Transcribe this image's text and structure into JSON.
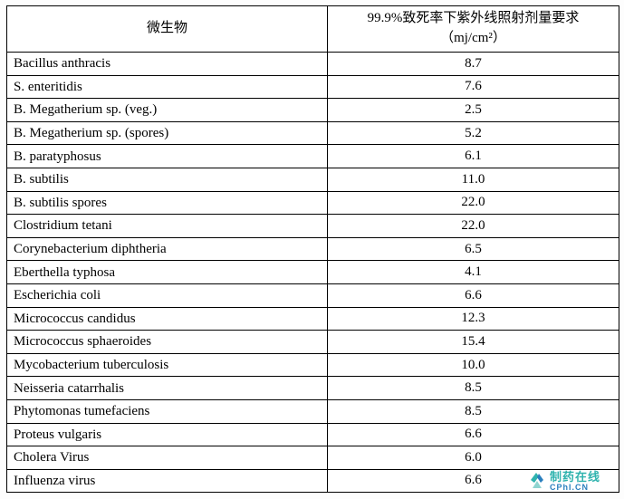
{
  "table": {
    "col1_header": "微生物",
    "col2_header_line1": "99.9%致死率下紫外线照射剂量要求",
    "col2_header_line2": "（mj/cm²）",
    "rows": [
      {
        "name": "Bacillus anthracis",
        "value": "8.7"
      },
      {
        "name": "S. enteritidis",
        "value": "7.6"
      },
      {
        "name": "B. Megatherium sp. (veg.)",
        "value": "2.5"
      },
      {
        "name": "B. Megatherium sp. (spores)",
        "value": "5.2"
      },
      {
        "name": "B. paratyphosus",
        "value": "6.1"
      },
      {
        "name": "B. subtilis",
        "value": "11.0"
      },
      {
        "name": "B. subtilis spores",
        "value": "22.0"
      },
      {
        "name": "Clostridium tetani",
        "value": "22.0"
      },
      {
        "name": "Corynebacterium diphtheria",
        "value": "6.5"
      },
      {
        "name": "Eberthella typhosa",
        "value": "4.1"
      },
      {
        "name": "Escherichia coli",
        "value": "6.6"
      },
      {
        "name": "Micrococcus candidus",
        "value": "12.3"
      },
      {
        "name": "Micrococcus sphaeroides",
        "value": "15.4"
      },
      {
        "name": "Mycobacterium tuberculosis",
        "value": "10.0"
      },
      {
        "name": "Neisseria catarrhalis",
        "value": "8.5"
      },
      {
        "name": "Phytomonas tumefaciens",
        "value": "8.5"
      },
      {
        "name": "Proteus vulgaris",
        "value": "6.6"
      },
      {
        "name": "Cholera Virus",
        "value": "6.0"
      },
      {
        "name": "Influenza virus",
        "value": "6.6"
      }
    ]
  },
  "watermark": {
    "brand": "制药在线",
    "domain": "CPhI.CN",
    "icon": "cphi-logo-icon",
    "colors": {
      "teal": "#2fb3ae",
      "blue": "#2a7fbe"
    }
  }
}
